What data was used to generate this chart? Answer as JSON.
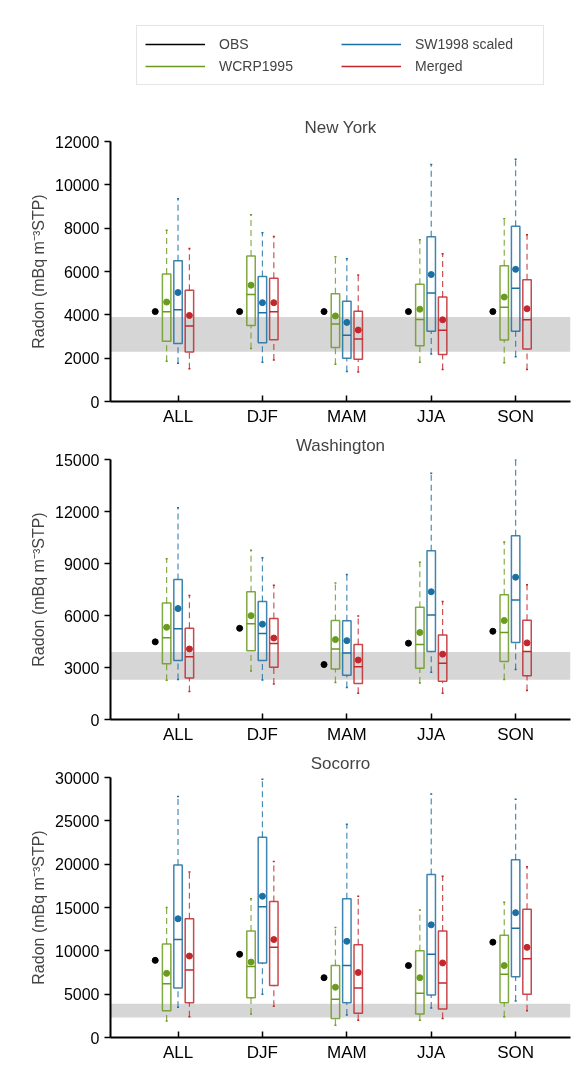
{
  "chart_data": [
    {
      "type": "box",
      "title": "New York",
      "ylabel": "Radon (mBq m⁻³STP)",
      "categories": [
        "ALL",
        "DJF",
        "MAM",
        "JJA",
        "SON"
      ],
      "ylim": [
        0,
        12000
      ],
      "yticks": [
        0,
        2000,
        4000,
        6000,
        8000,
        10000,
        12000
      ],
      "legend": "top",
      "line_style": "dashed",
      "marker": "circle",
      "bands": [
        {
          "axis": "y",
          "from": 2300,
          "to": 3900,
          "color": "#d6d6d6"
        }
      ],
      "series": [
        {
          "name": "OBS",
          "type": "scatter",
          "color": "#000000",
          "x": [
            "ALL",
            "DJF",
            "MAM",
            "JJA",
            "SON"
          ],
          "values": [
            4150,
            4150,
            4150,
            4150,
            4150
          ]
        },
        {
          "name": "WCRP1995",
          "color": "#6a9a1f",
          "boxes": [
            {
              "low": 1860,
              "q1": 2780,
              "median": 4140,
              "q3": 5880,
              "high": 7900,
              "mean": 4590
            },
            {
              "low": 2450,
              "q1": 3510,
              "median": 4940,
              "q3": 6710,
              "high": 8620,
              "mean": 5370
            },
            {
              "low": 1720,
              "q1": 2490,
              "median": 3580,
              "q3": 4970,
              "high": 6680,
              "mean": 3950
            },
            {
              "low": 1810,
              "q1": 2570,
              "median": 3790,
              "q3": 5410,
              "high": 7460,
              "mean": 4260
            },
            {
              "low": 1790,
              "q1": 2840,
              "median": 4350,
              "q3": 6260,
              "high": 8430,
              "mean": 4820
            }
          ]
        },
        {
          "name": "SW1998 scaled",
          "color": "#1b6fa3",
          "boxes": [
            {
              "low": 1760,
              "q1": 2680,
              "median": 4230,
              "q3": 6500,
              "high": 9360,
              "mean": 5030
            },
            {
              "low": 1810,
              "q1": 2710,
              "median": 4100,
              "q3": 5770,
              "high": 7790,
              "mean": 4560
            },
            {
              "low": 1390,
              "q1": 2000,
              "median": 3060,
              "q3": 4630,
              "high": 6590,
              "mean": 3650
            },
            {
              "low": 2190,
              "q1": 3240,
              "median": 5010,
              "q3": 7600,
              "high": 10940,
              "mean": 5860
            },
            {
              "low": 2070,
              "q1": 3240,
              "median": 5230,
              "q3": 8090,
              "high": 11180,
              "mean": 6100
            }
          ]
        },
        {
          "name": "Merged",
          "color": "#c0282d",
          "boxes": [
            {
              "low": 1510,
              "q1": 2280,
              "median": 3480,
              "q3": 5130,
              "high": 7060,
              "mean": 3970
            },
            {
              "low": 1910,
              "q1": 2850,
              "median": 4140,
              "q3": 5690,
              "high": 7620,
              "mean": 4560
            },
            {
              "low": 1360,
              "q1": 1950,
              "median": 2890,
              "q3": 4160,
              "high": 5840,
              "mean": 3300
            },
            {
              "low": 1480,
              "q1": 2170,
              "median": 3290,
              "q3": 4820,
              "high": 6820,
              "mean": 3770
            },
            {
              "low": 1480,
              "q1": 2420,
              "median": 3770,
              "q3": 5620,
              "high": 7700,
              "mean": 4280
            }
          ]
        }
      ]
    },
    {
      "type": "box",
      "title": "Washington",
      "ylabel": "Radon (mBq m⁻³STP)",
      "categories": [
        "ALL",
        "DJF",
        "MAM",
        "JJA",
        "SON"
      ],
      "ylim": [
        0,
        15000
      ],
      "yticks": [
        0,
        3000,
        6000,
        9000,
        12000,
        15000
      ],
      "line_style": "dashed",
      "marker": "circle",
      "bands": [
        {
          "axis": "y",
          "from": 2300,
          "to": 3900,
          "color": "#d6d6d6"
        }
      ],
      "series": [
        {
          "type": "scatter",
          "color": "#000000",
          "x": [
            "ALL",
            "DJF",
            "MAM",
            "JJA",
            "SON"
          ],
          "values": [
            4480,
            5260,
            3170,
            4400,
            5090
          ]
        },
        {
          "color": "#6a9a1f",
          "boxes": [
            {
              "low": 2260,
              "q1": 3210,
              "median": 4720,
              "q3": 6720,
              "high": 9270,
              "mean": 5320
            },
            {
              "low": 2800,
              "q1": 3970,
              "median": 5520,
              "q3": 7370,
              "high": 9760,
              "mean": 5990
            },
            {
              "low": 2130,
              "q1": 2910,
              "median": 4070,
              "q3": 5710,
              "high": 7870,
              "mean": 4610
            },
            {
              "low": 2110,
              "q1": 2950,
              "median": 4330,
              "q3": 6470,
              "high": 9070,
              "mean": 5020
            },
            {
              "low": 2310,
              "q1": 3340,
              "median": 5020,
              "q3": 7200,
              "high": 10240,
              "mean": 5710
            }
          ]
        },
        {
          "color": "#1b6fa3",
          "boxes": [
            {
              "low": 2310,
              "q1": 3410,
              "median": 5240,
              "q3": 8080,
              "high": 12220,
              "mean": 6400
            },
            {
              "low": 2280,
              "q1": 3410,
              "median": 4960,
              "q3": 6810,
              "high": 9330,
              "mean": 5500
            },
            {
              "low": 1850,
              "q1": 2560,
              "median": 3840,
              "q3": 5690,
              "high": 8360,
              "mean": 4550
            },
            {
              "low": 2720,
              "q1": 3920,
              "median": 6030,
              "q3": 9740,
              "high": 14200,
              "mean": 7370
            },
            {
              "low": 2890,
              "q1": 4440,
              "median": 6900,
              "q3": 10600,
              "high": 15000,
              "mean": 8210
            }
          ]
        },
        {
          "color": "#c0282d",
          "boxes": [
            {
              "low": 1620,
              "q1": 2390,
              "median": 3620,
              "q3": 5260,
              "high": 7160,
              "mean": 4070
            },
            {
              "low": 2050,
              "q1": 3020,
              "median": 4380,
              "q3": 5820,
              "high": 7740,
              "mean": 4700
            },
            {
              "low": 1510,
              "q1": 2070,
              "median": 3040,
              "q3": 4330,
              "high": 5970,
              "mean": 3430
            },
            {
              "low": 1510,
              "q1": 2200,
              "median": 3250,
              "q3": 4870,
              "high": 6810,
              "mean": 3770
            },
            {
              "low": 1680,
              "q1": 2520,
              "median": 3920,
              "q3": 5730,
              "high": 7780,
              "mean": 4420
            }
          ]
        }
      ]
    },
    {
      "type": "box",
      "title": "Socorro",
      "ylabel": "Radon (mBq m⁻³STP)",
      "categories": [
        "ALL",
        "DJF",
        "MAM",
        "JJA",
        "SON"
      ],
      "ylim": [
        0,
        30000
      ],
      "yticks": [
        0,
        5000,
        10000,
        15000,
        20000,
        25000,
        30000
      ],
      "line_style": "dashed",
      "marker": "circle",
      "bands": [
        {
          "axis": "y",
          "from": 2300,
          "to": 3900,
          "color": "#d6d6d6"
        }
      ],
      "series": [
        {
          "type": "scatter",
          "color": "#000000",
          "x": [
            "ALL",
            "DJF",
            "MAM",
            "JJA",
            "SON"
          ],
          "values": [
            8900,
            9600,
            6900,
            8300,
            11000
          ]
        },
        {
          "color": "#6a9a1f",
          "boxes": [
            {
              "low": 1900,
              "q1": 3100,
              "median": 6200,
              "q3": 10800,
              "high": 15000,
              "mean": 7400
            },
            {
              "low": 2700,
              "q1": 4600,
              "median": 8200,
              "q3": 12300,
              "high": 16000,
              "mean": 8700
            },
            {
              "low": 1400,
              "q1": 2200,
              "median": 4400,
              "q3": 8300,
              "high": 12700,
              "mean": 5800
            },
            {
              "low": 2000,
              "q1": 2700,
              "median": 5100,
              "q3": 10000,
              "high": 14700,
              "mean": 6900
            },
            {
              "low": 2400,
              "q1": 4000,
              "median": 7300,
              "q3": 11800,
              "high": 15600,
              "mean": 8300
            }
          ]
        },
        {
          "color": "#1b6fa3",
          "boxes": [
            {
              "low": 3500,
              "q1": 5700,
              "median": 11300,
              "q3": 19900,
              "high": 27800,
              "mean": 13700
            },
            {
              "low": 5000,
              "q1": 8600,
              "median": 15100,
              "q3": 23100,
              "high": 29800,
              "mean": 16300
            },
            {
              "low": 2600,
              "q1": 4000,
              "median": 8300,
              "q3": 16000,
              "high": 24600,
              "mean": 11100
            },
            {
              "low": 3400,
              "q1": 4900,
              "median": 9600,
              "q3": 18800,
              "high": 28100,
              "mean": 13000
            },
            {
              "low": 4200,
              "q1": 7000,
              "median": 12600,
              "q3": 20500,
              "high": 27500,
              "mean": 14400
            }
          ]
        },
        {
          "color": "#c0282d",
          "boxes": [
            {
              "low": 2400,
              "q1": 4000,
              "median": 7800,
              "q3": 13700,
              "high": 19100,
              "mean": 9400
            },
            {
              "low": 3600,
              "q1": 6000,
              "median": 10400,
              "q3": 15700,
              "high": 20300,
              "mean": 11300
            },
            {
              "low": 2000,
              "q1": 2800,
              "median": 5700,
              "q3": 10700,
              "high": 16300,
              "mean": 7500
            },
            {
              "low": 2200,
              "q1": 3300,
              "median": 6300,
              "q3": 12300,
              "high": 18600,
              "mean": 8600
            },
            {
              "low": 3100,
              "q1": 5000,
              "median": 9100,
              "q3": 14800,
              "high": 19700,
              "mean": 10400
            }
          ]
        }
      ]
    }
  ]
}
